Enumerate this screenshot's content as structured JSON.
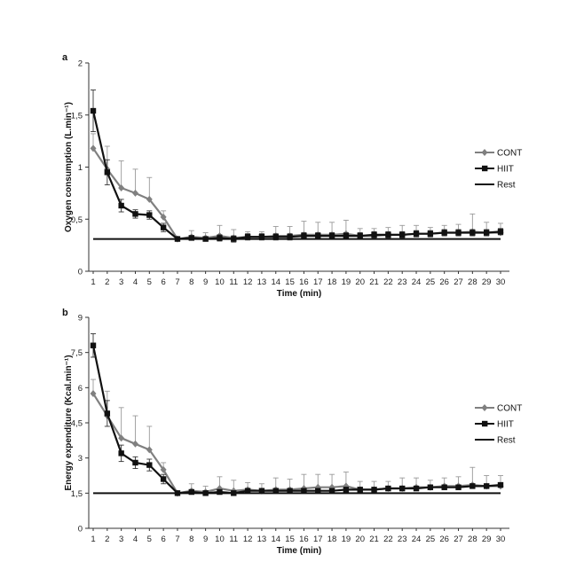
{
  "chart_data": [
    {
      "panel_label": "a",
      "type": "line",
      "xlabel": "Time (min)",
      "ylabel": "Oxygen consumption (L.min⁻¹)",
      "ylim": [
        0,
        2
      ],
      "yticks": [
        "0",
        "0,5",
        "1",
        "1,5",
        "2"
      ],
      "ytick_values": [
        0,
        0.5,
        1,
        1.5,
        2
      ],
      "x": [
        1,
        2,
        3,
        4,
        5,
        6,
        7,
        8,
        9,
        10,
        11,
        12,
        13,
        14,
        15,
        16,
        17,
        18,
        19,
        20,
        21,
        22,
        23,
        24,
        25,
        26,
        27,
        28,
        29,
        30
      ],
      "legend_position": "right",
      "series": [
        {
          "name": "CONT",
          "color": "#808080",
          "marker": "diamond",
          "values": [
            1.18,
            0.98,
            0.8,
            0.75,
            0.69,
            0.52,
            0.31,
            0.33,
            0.32,
            0.34,
            0.32,
            0.33,
            0.33,
            0.34,
            0.34,
            0.35,
            0.35,
            0.35,
            0.36,
            0.34,
            0.34,
            0.35,
            0.35,
            0.36,
            0.36,
            0.37,
            0.37,
            0.38,
            0.37,
            0.37
          ],
          "errors": [
            0.14,
            0.22,
            0.26,
            0.23,
            0.21,
            0.06,
            0.02,
            0.06,
            0.05,
            0.1,
            0.08,
            0.05,
            0.05,
            0.09,
            0.09,
            0.13,
            0.12,
            0.12,
            0.13,
            0.07,
            0.07,
            0.07,
            0.09,
            0.08,
            0.06,
            0.07,
            0.08,
            0.17,
            0.1,
            0.09
          ]
        },
        {
          "name": "HIIT",
          "color": "#111111",
          "marker": "square",
          "values": [
            1.54,
            0.95,
            0.63,
            0.55,
            0.54,
            0.42,
            0.31,
            0.32,
            0.31,
            0.32,
            0.31,
            0.33,
            0.33,
            0.33,
            0.33,
            0.34,
            0.34,
            0.34,
            0.34,
            0.34,
            0.35,
            0.35,
            0.35,
            0.36,
            0.36,
            0.37,
            0.37,
            0.37,
            0.37,
            0.38
          ],
          "errors": [
            0.2,
            0.12,
            0.06,
            0.04,
            0.04,
            0.04,
            0.01,
            0.02,
            0.02,
            0.03,
            0.03,
            0.03,
            0.03,
            0.03,
            0.03,
            0.03,
            0.03,
            0.03,
            0.03,
            0.03,
            0.03,
            0.03,
            0.03,
            0.03,
            0.03,
            0.03,
            0.03,
            0.03,
            0.03,
            0.03
          ]
        },
        {
          "name": "Rest",
          "color": "#111111",
          "marker": "none",
          "style": "flat",
          "values": [
            0.31,
            0.31,
            0.31,
            0.31,
            0.31,
            0.31,
            0.31,
            0.31,
            0.31,
            0.31,
            0.31,
            0.31,
            0.31,
            0.31,
            0.31,
            0.31,
            0.31,
            0.31,
            0.31,
            0.31,
            0.31,
            0.31,
            0.31,
            0.31,
            0.31,
            0.31,
            0.31,
            0.31,
            0.31,
            0.31
          ]
        }
      ]
    },
    {
      "panel_label": "b",
      "type": "line",
      "xlabel": "Time (min)",
      "ylabel": "Energy expenditure (Kcal.min⁻¹)",
      "ylim": [
        0,
        9
      ],
      "yticks": [
        "0",
        "1,5",
        "3",
        "4,5",
        "6",
        "7,5",
        "9"
      ],
      "ytick_values": [
        0,
        1.5,
        3,
        4.5,
        6,
        7.5,
        9
      ],
      "x": [
        1,
        2,
        3,
        4,
        5,
        6,
        7,
        8,
        9,
        10,
        11,
        12,
        13,
        14,
        15,
        16,
        17,
        18,
        19,
        20,
        21,
        22,
        23,
        24,
        25,
        26,
        27,
        28,
        29,
        30
      ],
      "legend_position": "right",
      "series": [
        {
          "name": "CONT",
          "color": "#808080",
          "marker": "diamond",
          "values": [
            5.75,
            4.8,
            3.85,
            3.6,
            3.35,
            2.5,
            1.5,
            1.6,
            1.55,
            1.7,
            1.6,
            1.65,
            1.6,
            1.65,
            1.65,
            1.7,
            1.75,
            1.75,
            1.8,
            1.65,
            1.65,
            1.7,
            1.7,
            1.75,
            1.75,
            1.8,
            1.8,
            1.85,
            1.8,
            1.8
          ],
          "errors": [
            0.6,
            1.05,
            1.3,
            1.2,
            1.0,
            0.3,
            0.1,
            0.3,
            0.25,
            0.5,
            0.45,
            0.3,
            0.3,
            0.5,
            0.45,
            0.6,
            0.55,
            0.55,
            0.6,
            0.35,
            0.35,
            0.3,
            0.45,
            0.4,
            0.3,
            0.35,
            0.4,
            0.75,
            0.45,
            0.45
          ]
        },
        {
          "name": "HIIT",
          "color": "#111111",
          "marker": "square",
          "values": [
            7.8,
            4.9,
            3.2,
            2.8,
            2.7,
            2.1,
            1.5,
            1.55,
            1.5,
            1.55,
            1.5,
            1.6,
            1.6,
            1.6,
            1.6,
            1.6,
            1.6,
            1.6,
            1.65,
            1.65,
            1.65,
            1.7,
            1.7,
            1.7,
            1.75,
            1.75,
            1.75,
            1.8,
            1.8,
            1.85
          ],
          "errors": [
            0.5,
            0.55,
            0.35,
            0.25,
            0.25,
            0.2,
            0.05,
            0.1,
            0.1,
            0.1,
            0.1,
            0.1,
            0.1,
            0.1,
            0.1,
            0.1,
            0.1,
            0.1,
            0.1,
            0.1,
            0.1,
            0.1,
            0.1,
            0.1,
            0.1,
            0.1,
            0.1,
            0.1,
            0.1,
            0.1
          ]
        },
        {
          "name": "Rest",
          "color": "#111111",
          "marker": "none",
          "style": "flat",
          "values": [
            1.5,
            1.5,
            1.5,
            1.5,
            1.5,
            1.5,
            1.5,
            1.5,
            1.5,
            1.5,
            1.5,
            1.5,
            1.5,
            1.5,
            1.5,
            1.5,
            1.5,
            1.5,
            1.5,
            1.5,
            1.5,
            1.5,
            1.5,
            1.5,
            1.5,
            1.5,
            1.5,
            1.5,
            1.5,
            1.5
          ]
        }
      ]
    }
  ]
}
